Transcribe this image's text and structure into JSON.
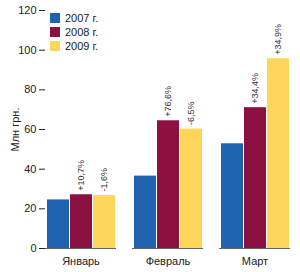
{
  "chart_data": {
    "type": "bar",
    "categories": [
      "Январь",
      "Февраль",
      "Март"
    ],
    "y_label": "Млн грн.",
    "ylim": [
      0,
      120
    ],
    "yticks": [
      0,
      20,
      40,
      60,
      80,
      100,
      120
    ],
    "grid": false,
    "legend": "top-left",
    "series": [
      {
        "name": "2007 г.",
        "color": "#1f63b0",
        "values": [
          24.5,
          36.5,
          52.8
        ]
      },
      {
        "name": "2008 г.",
        "color": "#8c1040",
        "values": [
          27.1,
          64.4,
          71.0
        ],
        "annotations": [
          "+10,7%",
          "+76,6%",
          "+34,4%"
        ]
      },
      {
        "name": "2009 г.",
        "color": "#ffd65c",
        "values": [
          26.7,
          60.2,
          95.7
        ],
        "annotations": [
          "-1,6%",
          "-6,5%",
          "+34,9%"
        ]
      }
    ]
  }
}
